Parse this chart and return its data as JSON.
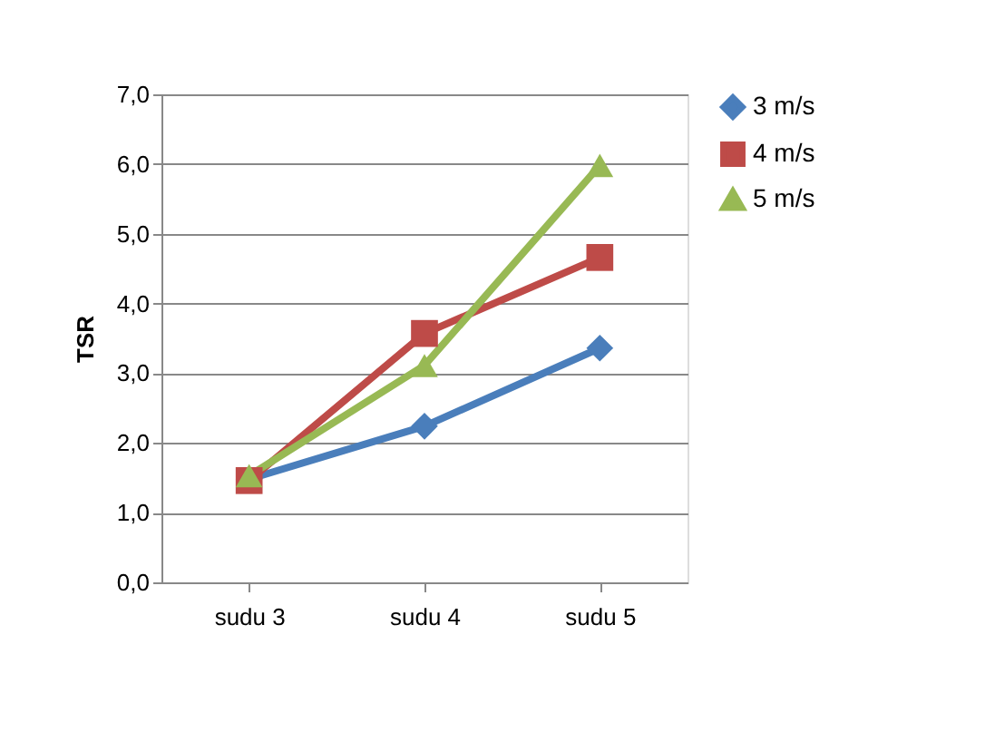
{
  "chart_data": {
    "type": "line",
    "ylabel": "TSR",
    "categories": [
      "sudu 3",
      "sudu 4",
      "sudu 5"
    ],
    "series": [
      {
        "name": "3 m/s",
        "color": "#4a7ebb",
        "marker": "diamond",
        "values": [
          1.48,
          2.24,
          3.36
        ]
      },
      {
        "name": "4 m/s",
        "color": "#be4b48",
        "marker": "square",
        "values": [
          1.46,
          3.57,
          4.66
        ]
      },
      {
        "name": "5 m/s",
        "color": "#98b954",
        "marker": "triangle",
        "values": [
          1.53,
          3.11,
          5.98
        ]
      }
    ],
    "ylim": [
      0,
      7
    ],
    "yticks": [
      {
        "value": 0,
        "label": "0,0"
      },
      {
        "value": 1,
        "label": "1,0"
      },
      {
        "value": 2,
        "label": "2,0"
      },
      {
        "value": 3,
        "label": "3,0"
      },
      {
        "value": 4,
        "label": "4,0"
      },
      {
        "value": 5,
        "label": "5,0"
      },
      {
        "value": 6,
        "label": "6,0"
      },
      {
        "value": 7,
        "label": "7,0"
      }
    ],
    "grid": "y",
    "legend": "right",
    "line_style": "solid"
  }
}
